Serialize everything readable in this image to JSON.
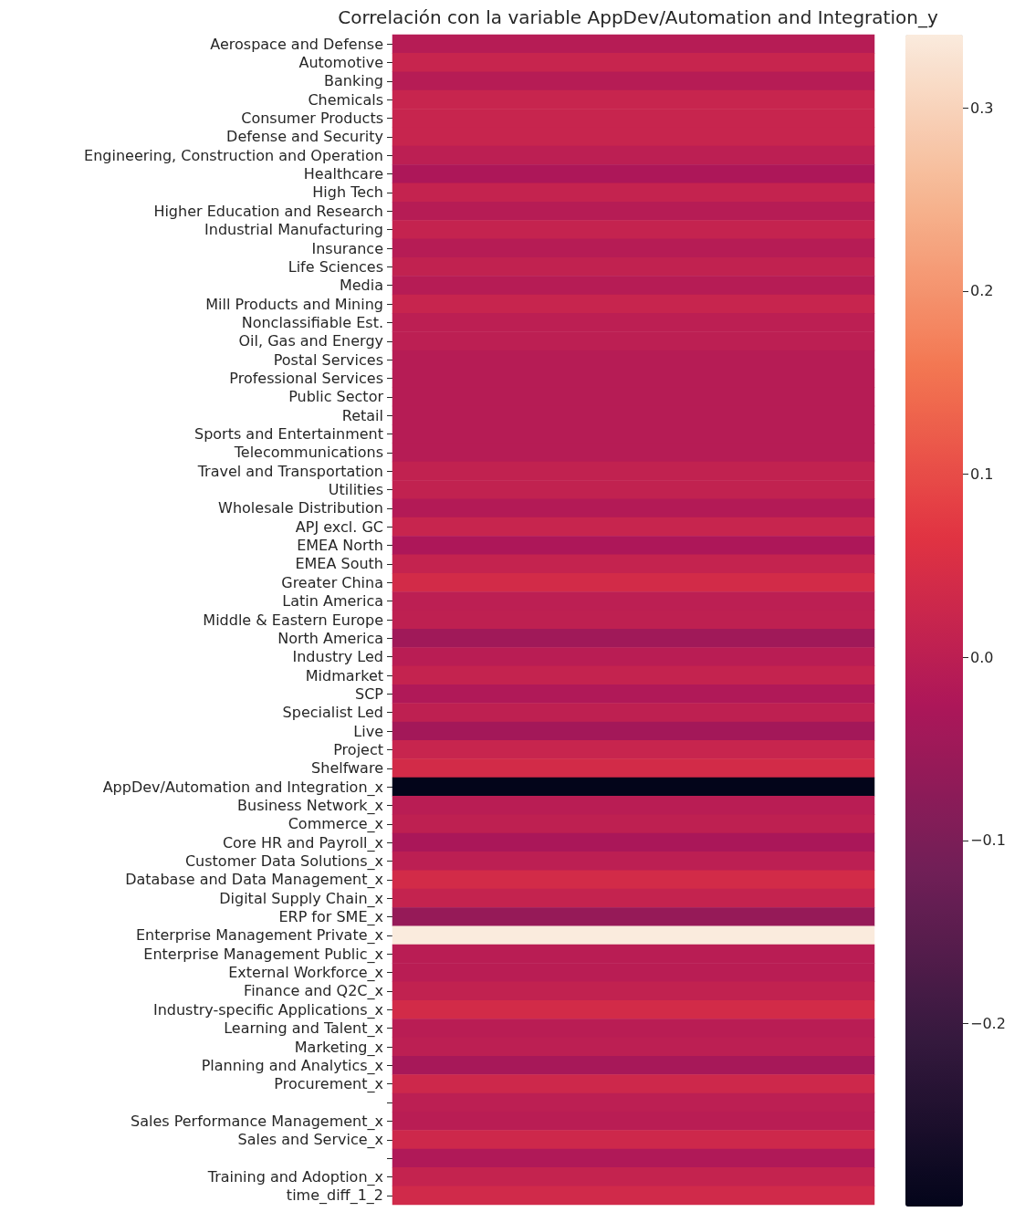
{
  "chart_data": {
    "type": "heatmap",
    "title": "Correlación con la variable AppDev/Automation and Integration_y",
    "categories": [
      null
    ],
    "y_categories": [
      "Aerospace and Defense",
      "Automotive",
      "Banking",
      "Chemicals",
      "Consumer Products",
      "Defense and Security",
      "Engineering, Construction and Operation",
      "Healthcare",
      "High Tech",
      "Higher Education and Research",
      "Industrial Manufacturing",
      "Insurance",
      "Life Sciences",
      "Media",
      "Mill Products and Mining",
      "Nonclassifiable Est.",
      "Oil, Gas and Energy",
      "Postal Services",
      "Professional Services",
      "Public Sector",
      "Retail",
      "Sports and Entertainment",
      "Telecommunications",
      "Travel and Transportation",
      "Utilities",
      "Wholesale Distribution",
      "APJ excl. GC",
      "EMEA North",
      "EMEA South",
      "Greater China",
      "Latin America",
      "Middle & Eastern Europe",
      "North America",
      "Industry Led",
      "Midmarket",
      "SCP",
      "Specialist Led",
      "Live",
      "Project",
      "Shelfware",
      "AppDev/Automation and Integration_x",
      "Business Network_x",
      "Commerce_x",
      "Core HR and Payroll_x",
      "Customer Data Solutions_x",
      "Database and Data Management_x",
      "Digital Supply Chain_x",
      "ERP for SME_x",
      "Enterprise Management Private_x",
      "Enterprise Management Public_x",
      "External Workforce_x",
      "Finance and Q2C_x",
      "Industry-specific Applications_x",
      "Learning and Talent_x",
      "Marketing_x",
      "Planning and Analytics_x",
      "Procurement_x",
      null,
      "Sales Performance Management_x",
      "Sales and Service_x",
      null,
      "Training and Adoption_x",
      "time_diff_1_2"
    ],
    "cells": [
      [
        -0.01
      ],
      [
        0.02
      ],
      [
        -0.01
      ],
      [
        0.02
      ],
      [
        0.02
      ],
      [
        0.02
      ],
      [
        0.0
      ],
      [
        -0.025
      ],
      [
        0.015
      ],
      [
        -0.01
      ],
      [
        0.015
      ],
      [
        -0.01
      ],
      [
        0.01
      ],
      [
        -0.01
      ],
      [
        0.02
      ],
      [
        0.0
      ],
      [
        0.0
      ],
      [
        -0.01
      ],
      [
        -0.01
      ],
      [
        -0.01
      ],
      [
        -0.01
      ],
      [
        -0.01
      ],
      [
        -0.01
      ],
      [
        0.01
      ],
      [
        0.01
      ],
      [
        -0.015
      ],
      [
        0.02
      ],
      [
        -0.025
      ],
      [
        0.015
      ],
      [
        0.04
      ],
      [
        0.0
      ],
      [
        0.005
      ],
      [
        -0.045
      ],
      [
        -0.005
      ],
      [
        0.015
      ],
      [
        -0.02
      ],
      [
        0.005
      ],
      [
        -0.04
      ],
      [
        0.02
      ],
      [
        0.04
      ],
      [
        -0.3
      ],
      [
        -0.005
      ],
      [
        0.005
      ],
      [
        -0.03
      ],
      [
        0.0
      ],
      [
        0.04
      ],
      [
        0.015
      ],
      [
        -0.06
      ],
      [
        0.34
      ],
      [
        -0.005
      ],
      [
        -0.005
      ],
      [
        0.01
      ],
      [
        0.04
      ],
      [
        -0.005
      ],
      [
        0.0
      ],
      [
        -0.035
      ],
      [
        0.03
      ],
      [
        0.0
      ],
      [
        -0.005
      ],
      [
        0.03
      ],
      [
        -0.02
      ],
      [
        0.015
      ],
      [
        0.035
      ]
    ],
    "clim": [
      -0.3,
      0.34
    ],
    "cticks": [
      {
        "value": -0.2,
        "label": "−0.2"
      },
      {
        "value": -0.1,
        "label": "−0.1"
      },
      {
        "value": 0,
        "label": "0.0"
      },
      0.1,
      0.2,
      0.3
    ]
  }
}
